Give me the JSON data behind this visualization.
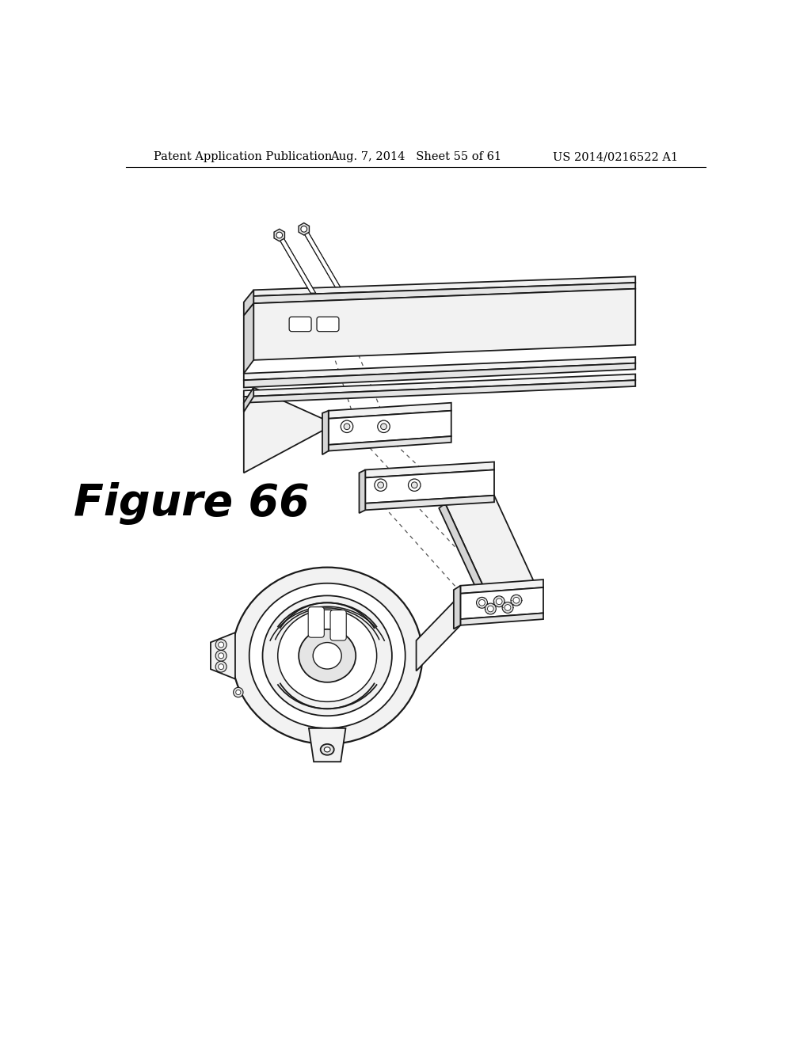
{
  "background_color": "#ffffff",
  "header_left": "Patent Application Publication",
  "header_center": "Aug. 7, 2014   Sheet 55 of 61",
  "header_right": "US 2014/0216522 A1",
  "figure_label": "Figure 66",
  "header_fontsize": 10.5,
  "figure_label_fontsize": 40,
  "line_color": "#1a1a1a",
  "dashed_color": "#555555",
  "fill_light": "#f2f2f2",
  "fill_mid": "#e5e5e5",
  "fill_dark": "#d5d5d5",
  "fill_white": "#ffffff"
}
